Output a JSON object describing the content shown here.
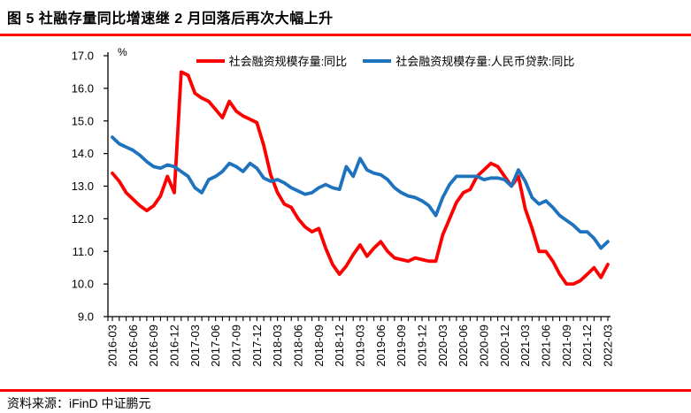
{
  "header": {
    "title": "图 5  社融存量同比增速继 2 月回落后再次大幅上升"
  },
  "footer": {
    "source": "资料来源：iFinD   中证鹏元"
  },
  "accent_color": "#FE0000",
  "axis_color": "#000000",
  "chart_data": {
    "type": "line",
    "title": "",
    "unit_label": "%",
    "grid": false,
    "legend_position": "top",
    "ylim": [
      9.0,
      17.0
    ],
    "ytick_step": 1.0,
    "yticks": [
      "17.0",
      "16.0",
      "15.0",
      "14.0",
      "13.0",
      "12.0",
      "11.0",
      "10.0",
      "9.0"
    ],
    "xtick_every": 3,
    "x": [
      "2016-03",
      "2016-04",
      "2016-05",
      "2016-06",
      "2016-07",
      "2016-08",
      "2016-09",
      "2016-10",
      "2016-11",
      "2016-12",
      "2017-01",
      "2017-02",
      "2017-03",
      "2017-04",
      "2017-05",
      "2017-06",
      "2017-07",
      "2017-08",
      "2017-09",
      "2017-10",
      "2017-11",
      "2017-12",
      "2018-01",
      "2018-02",
      "2018-03",
      "2018-04",
      "2018-05",
      "2018-06",
      "2018-07",
      "2018-08",
      "2018-09",
      "2018-10",
      "2018-11",
      "2018-12",
      "2019-01",
      "2019-02",
      "2019-03",
      "2019-04",
      "2019-05",
      "2019-06",
      "2019-07",
      "2019-08",
      "2019-09",
      "2019-10",
      "2019-11",
      "2019-12",
      "2020-01",
      "2020-02",
      "2020-03",
      "2020-04",
      "2020-05",
      "2020-06",
      "2020-07",
      "2020-08",
      "2020-09",
      "2020-10",
      "2020-11",
      "2020-12",
      "2021-01",
      "2021-02",
      "2021-03",
      "2021-04",
      "2021-05",
      "2021-06",
      "2021-07",
      "2021-08",
      "2021-09",
      "2021-10",
      "2021-11",
      "2021-12",
      "2022-01",
      "2022-02",
      "2022-03"
    ],
    "series": [
      {
        "name": "社会融资规模存量:同比",
        "color": "#FE0000",
        "values": [
          13.4,
          13.15,
          12.8,
          12.6,
          12.4,
          12.25,
          12.4,
          12.7,
          13.3,
          12.8,
          16.5,
          16.4,
          15.85,
          15.7,
          15.6,
          15.35,
          15.1,
          15.6,
          15.3,
          15.15,
          15.05,
          14.95,
          14.25,
          13.35,
          12.8,
          12.45,
          12.35,
          12.0,
          11.75,
          11.6,
          11.7,
          11.1,
          10.6,
          10.3,
          10.55,
          10.9,
          11.2,
          10.85,
          11.1,
          11.3,
          11.0,
          10.8,
          10.75,
          10.7,
          10.8,
          10.75,
          10.7,
          10.7,
          11.5,
          12.0,
          12.5,
          12.8,
          12.9,
          13.3,
          13.5,
          13.7,
          13.6,
          13.3,
          13.0,
          13.3,
          12.3,
          11.7,
          11.0,
          11.0,
          10.7,
          10.3,
          10.0,
          10.0,
          10.1,
          10.3,
          10.5,
          10.2,
          10.6
        ]
      },
      {
        "name": "社会融资规模存量:人民币贷款:同比",
        "color": "#1E73BE",
        "values": [
          14.5,
          14.3,
          14.2,
          14.1,
          13.95,
          13.75,
          13.6,
          13.55,
          13.65,
          13.6,
          13.45,
          13.3,
          12.95,
          12.8,
          13.2,
          13.3,
          13.45,
          13.7,
          13.6,
          13.45,
          13.7,
          13.55,
          13.25,
          13.15,
          13.2,
          13.1,
          12.95,
          12.85,
          12.75,
          12.8,
          12.95,
          13.05,
          12.95,
          12.9,
          13.6,
          13.3,
          13.85,
          13.5,
          13.4,
          13.35,
          13.2,
          12.95,
          12.8,
          12.7,
          12.65,
          12.55,
          12.4,
          12.1,
          12.65,
          13.05,
          13.3,
          13.3,
          13.3,
          13.3,
          13.2,
          13.25,
          13.25,
          13.2,
          13.0,
          13.5,
          13.15,
          12.65,
          12.45,
          12.55,
          12.35,
          12.1,
          11.95,
          11.8,
          11.6,
          11.6,
          11.4,
          11.1,
          11.3
        ]
      }
    ]
  }
}
